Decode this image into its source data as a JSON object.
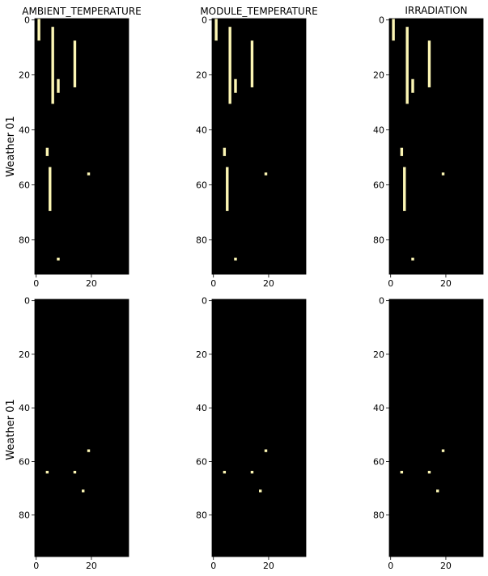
{
  "figure": {
    "row_labels": [
      "Weather 01",
      "Weather 01"
    ],
    "col_titles": [
      "AMBIENT_TEMPERATURE",
      "MODULE_TEMPERATURE",
      "IRRADIATION"
    ],
    "colors": {
      "background": "#000000",
      "marker": "#fcf6b4",
      "axis": "#000000"
    }
  },
  "chart_data": [
    {
      "type": "heatmap",
      "row": 0,
      "col": 0,
      "title": "AMBIENT_TEMPERATURE",
      "ylabel": "Weather 01",
      "xlim": [
        -0.5,
        33.5
      ],
      "ylim": [
        92.5,
        -0.5
      ],
      "xticks": [
        0,
        20
      ],
      "yticks": [
        0,
        20,
        40,
        60,
        80
      ],
      "cells": [
        {
          "x": 1,
          "y0": 0,
          "y1": 7
        },
        {
          "x": 6,
          "y0": 3,
          "y1": 30
        },
        {
          "x": 8,
          "y0": 22,
          "y1": 26
        },
        {
          "x": 14,
          "y0": 8,
          "y1": 24
        },
        {
          "x": 4,
          "y0": 47,
          "y1": 49
        },
        {
          "x": 5,
          "y0": 54,
          "y1": 69
        },
        {
          "x": 19,
          "y0": 56,
          "y1": 56
        },
        {
          "x": 8,
          "y0": 87,
          "y1": 87
        }
      ]
    },
    {
      "type": "heatmap",
      "row": 0,
      "col": 1,
      "title": "MODULE_TEMPERATURE",
      "xlim": [
        -0.5,
        33.5
      ],
      "ylim": [
        92.5,
        -0.5
      ],
      "xticks": [
        0,
        20
      ],
      "yticks": [
        0,
        20,
        40,
        60,
        80
      ],
      "cells": [
        {
          "x": 1,
          "y0": 0,
          "y1": 7
        },
        {
          "x": 6,
          "y0": 3,
          "y1": 30
        },
        {
          "x": 8,
          "y0": 22,
          "y1": 26
        },
        {
          "x": 14,
          "y0": 8,
          "y1": 24
        },
        {
          "x": 4,
          "y0": 47,
          "y1": 49
        },
        {
          "x": 5,
          "y0": 54,
          "y1": 69
        },
        {
          "x": 19,
          "y0": 56,
          "y1": 56
        },
        {
          "x": 8,
          "y0": 87,
          "y1": 87
        }
      ]
    },
    {
      "type": "heatmap",
      "row": 0,
      "col": 2,
      "title": "IRRADIATION",
      "xlim": [
        -0.5,
        33.5
      ],
      "ylim": [
        92.5,
        -0.5
      ],
      "xticks": [
        0,
        20
      ],
      "yticks": [
        0,
        20,
        40,
        60,
        80
      ],
      "cells": [
        {
          "x": 1,
          "y0": 0,
          "y1": 7
        },
        {
          "x": 6,
          "y0": 3,
          "y1": 30
        },
        {
          "x": 8,
          "y0": 22,
          "y1": 26
        },
        {
          "x": 14,
          "y0": 8,
          "y1": 24
        },
        {
          "x": 4,
          "y0": 47,
          "y1": 49
        },
        {
          "x": 5,
          "y0": 54,
          "y1": 69
        },
        {
          "x": 19,
          "y0": 56,
          "y1": 56
        },
        {
          "x": 8,
          "y0": 87,
          "y1": 87
        }
      ]
    },
    {
      "type": "heatmap",
      "row": 1,
      "col": 0,
      "ylabel": "Weather 01",
      "xlim": [
        -0.5,
        33.5
      ],
      "ylim": [
        95.5,
        -0.5
      ],
      "xticks": [
        0,
        20
      ],
      "yticks": [
        0,
        20,
        40,
        60,
        80
      ],
      "cells": [
        {
          "x": 19,
          "y0": 56,
          "y1": 56
        },
        {
          "x": 4,
          "y0": 64,
          "y1": 64
        },
        {
          "x": 14,
          "y0": 64,
          "y1": 64
        },
        {
          "x": 17,
          "y0": 71,
          "y1": 71
        }
      ]
    },
    {
      "type": "heatmap",
      "row": 1,
      "col": 1,
      "xlim": [
        -0.5,
        33.5
      ],
      "ylim": [
        95.5,
        -0.5
      ],
      "xticks": [
        0,
        20
      ],
      "yticks": [
        0,
        20,
        40,
        60,
        80
      ],
      "cells": [
        {
          "x": 19,
          "y0": 56,
          "y1": 56
        },
        {
          "x": 4,
          "y0": 64,
          "y1": 64
        },
        {
          "x": 14,
          "y0": 64,
          "y1": 64
        },
        {
          "x": 17,
          "y0": 71,
          "y1": 71
        }
      ]
    },
    {
      "type": "heatmap",
      "row": 1,
      "col": 2,
      "xlim": [
        -0.5,
        33.5
      ],
      "ylim": [
        95.5,
        -0.5
      ],
      "xticks": [
        0,
        20
      ],
      "yticks": [
        0,
        20,
        40,
        60,
        80
      ],
      "cells": [
        {
          "x": 19,
          "y0": 56,
          "y1": 56
        },
        {
          "x": 4,
          "y0": 64,
          "y1": 64
        },
        {
          "x": 14,
          "y0": 64,
          "y1": 64
        },
        {
          "x": 17,
          "y0": 71,
          "y1": 71
        }
      ]
    }
  ]
}
